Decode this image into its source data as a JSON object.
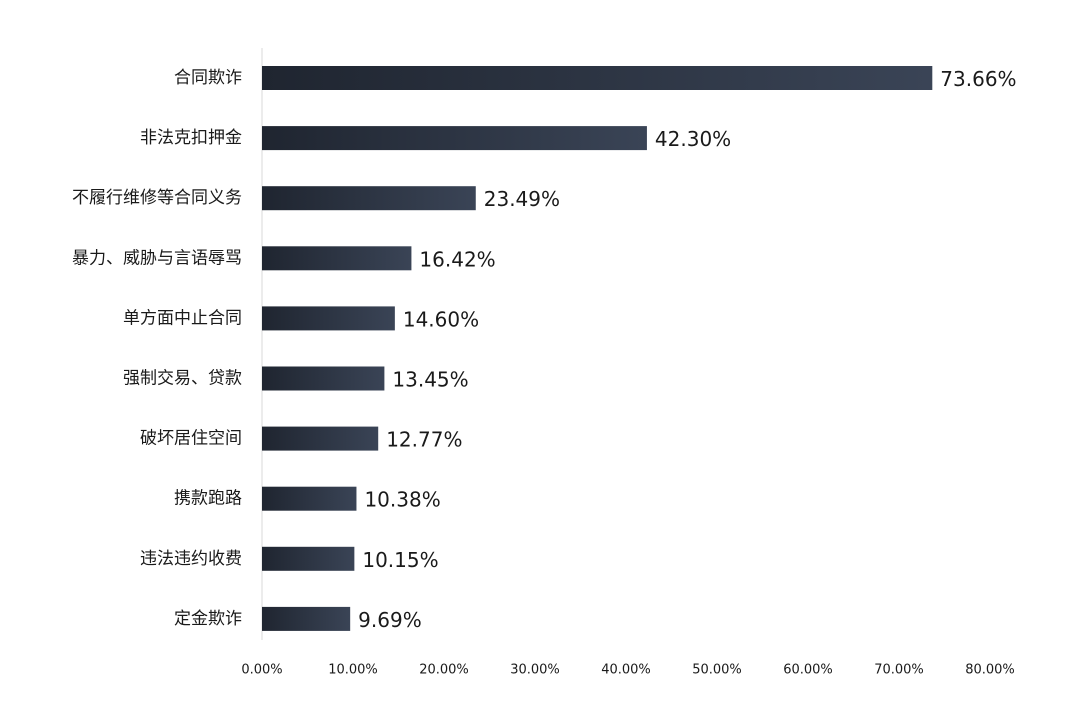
{
  "chart_data": {
    "type": "bar",
    "orientation": "horizontal",
    "categories": [
      "合同欺诈",
      "非法克扣押金",
      "不履行维修等合同义务",
      "暴力、威胁与言语辱骂",
      "单方面中止合同",
      "强制交易、贷款",
      "破坏居住空间",
      "携款跑路",
      "违法违约收费",
      "定金欺诈"
    ],
    "values": [
      73.66,
      42.3,
      23.49,
      16.42,
      14.6,
      13.45,
      12.77,
      10.38,
      10.15,
      9.69
    ],
    "value_labels": [
      "73.66%",
      "42.30%",
      "23.49%",
      "16.42%",
      "14.60%",
      "13.45%",
      "12.77%",
      "10.38%",
      "10.15%",
      "9.69%"
    ],
    "x_ticks": [
      "0.00%",
      "10.00%",
      "20.00%",
      "30.00%",
      "40.00%",
      "50.00%",
      "60.00%",
      "70.00%",
      "80.00%"
    ],
    "xlim": [
      0,
      80
    ],
    "title": "",
    "xlabel": "",
    "ylabel": "",
    "grid": false,
    "bar_color_start": "#1f2530",
    "bar_color_end": "#3a4456"
  }
}
